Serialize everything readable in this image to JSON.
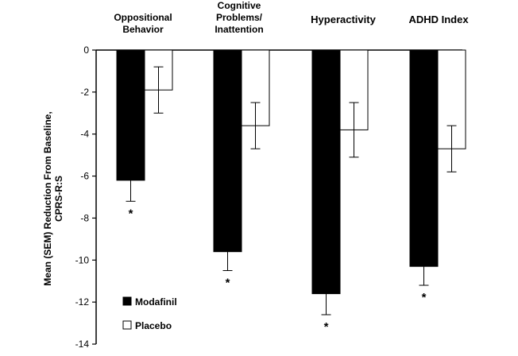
{
  "chart_data": {
    "type": "bar",
    "categories": [
      [
        "Oppositional",
        "Behavior"
      ],
      [
        "Cognitive",
        "Problems/",
        "Inattention"
      ],
      [
        "Hyperactivity"
      ],
      [
        "ADHD Index"
      ]
    ],
    "series": [
      {
        "name": "Modafinil",
        "color": "#000000",
        "values": [
          -6.2,
          -9.6,
          -11.6,
          -10.3
        ],
        "error": [
          1.0,
          0.9,
          1.0,
          0.9
        ],
        "significant": [
          true,
          true,
          true,
          true
        ]
      },
      {
        "name": "Placebo",
        "color": "#ffffff",
        "values": [
          -1.9,
          -3.6,
          -3.8,
          -4.7
        ],
        "error": [
          1.1,
          1.1,
          1.3,
          1.1
        ],
        "significant": [
          false,
          false,
          false,
          false
        ]
      }
    ],
    "significance_marker": "*",
    "ylabel": [
      "Mean (SEM) Reduction From Baseline,",
      "CPRS-R:S"
    ],
    "xlabel": "",
    "ylim": [
      -14,
      0
    ],
    "yticks": [
      0,
      -2,
      -4,
      -6,
      -8,
      -10,
      -12,
      -14
    ],
    "grid": false,
    "legend_position": "bottom-left",
    "x_axis_position": "top"
  }
}
